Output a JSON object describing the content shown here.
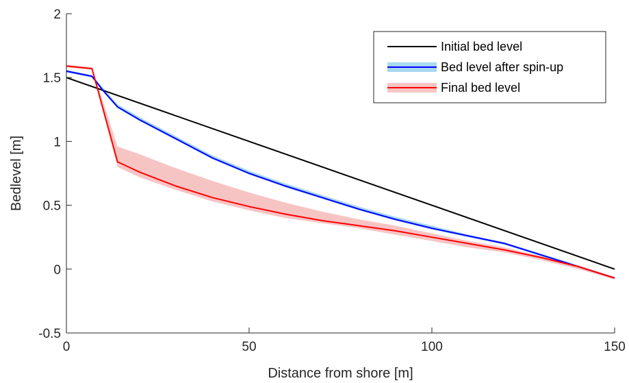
{
  "chart_data": {
    "type": "line",
    "xlabel": "Distance from shore [m]",
    "ylabel": "Bedlevel [m]",
    "xlim": [
      0,
      150
    ],
    "ylim": [
      -0.5,
      2
    ],
    "xticks": [
      {
        "value": 0,
        "label": "0"
      },
      {
        "value": 50,
        "label": "50"
      },
      {
        "value": 100,
        "label": "100"
      },
      {
        "value": 150,
        "label": "150"
      }
    ],
    "yticks": [
      {
        "value": -0.5,
        "label": "-0.5"
      },
      {
        "value": 0,
        "label": "0"
      },
      {
        "value": 0.5,
        "label": "0.5"
      },
      {
        "value": 1,
        "label": "1"
      },
      {
        "value": 1.5,
        "label": "1.5"
      },
      {
        "value": 2,
        "label": "2"
      }
    ],
    "grid": false,
    "legend_position": "top-right",
    "series": [
      {
        "name": "Initial bed level",
        "color": "#000000",
        "x": [
          0,
          150
        ],
        "y": [
          1.5,
          0.0
        ]
      },
      {
        "name": "Bed level after spin-up",
        "color": "#0000ff",
        "band_color": "#a8d8f0",
        "x": [
          0,
          7,
          10,
          14,
          20,
          30,
          40,
          50,
          60,
          70,
          80,
          90,
          100,
          110,
          120,
          130,
          140,
          150
        ],
        "y": [
          1.55,
          1.51,
          1.4,
          1.27,
          1.17,
          1.02,
          0.87,
          0.75,
          0.65,
          0.56,
          0.47,
          0.39,
          0.32,
          0.26,
          0.2,
          0.11,
          0.02,
          -0.07
        ],
        "band_upper": [
          1.56,
          1.52,
          1.42,
          1.29,
          1.19,
          1.04,
          0.89,
          0.77,
          0.67,
          0.58,
          0.49,
          0.41,
          0.34,
          0.27,
          0.21,
          0.12,
          0.03,
          -0.06
        ],
        "band_lower": [
          1.54,
          1.5,
          1.39,
          1.26,
          1.16,
          1.01,
          0.86,
          0.74,
          0.64,
          0.55,
          0.46,
          0.38,
          0.31,
          0.25,
          0.19,
          0.1,
          0.01,
          -0.08
        ]
      },
      {
        "name": "Final bed level",
        "color": "#ff0000",
        "band_color": "#f7c4c4",
        "x": [
          0,
          7,
          14,
          20,
          30,
          40,
          50,
          60,
          70,
          80,
          90,
          100,
          110,
          120,
          130,
          140,
          150
        ],
        "y": [
          1.59,
          1.57,
          0.84,
          0.76,
          0.65,
          0.56,
          0.49,
          0.43,
          0.38,
          0.34,
          0.3,
          0.25,
          0.2,
          0.15,
          0.09,
          0.02,
          -0.07
        ],
        "band_upper": [
          1.6,
          1.58,
          0.96,
          0.9,
          0.79,
          0.69,
          0.6,
          0.52,
          0.45,
          0.39,
          0.34,
          0.28,
          0.22,
          0.17,
          0.1,
          0.03,
          -0.06
        ],
        "band_lower": [
          1.58,
          1.56,
          0.8,
          0.72,
          0.62,
          0.53,
          0.46,
          0.4,
          0.36,
          0.32,
          0.27,
          0.22,
          0.17,
          0.13,
          0.07,
          0.0,
          -0.08
        ]
      }
    ]
  }
}
